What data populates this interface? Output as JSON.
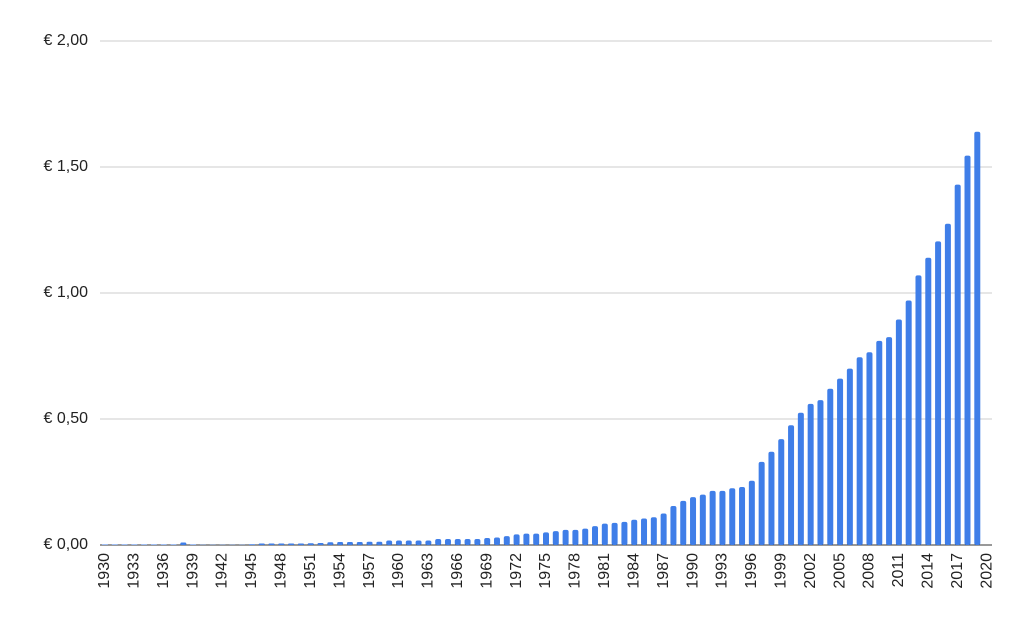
{
  "chart_data": {
    "type": "bar",
    "categories": [
      "1930",
      null,
      null,
      "1933",
      null,
      null,
      "1936",
      null,
      null,
      "1939",
      null,
      null,
      "1942",
      null,
      null,
      "1945",
      null,
      null,
      "1948",
      null,
      null,
      "1951",
      null,
      null,
      "1954",
      null,
      null,
      "1957",
      null,
      null,
      "1960",
      null,
      null,
      "1963",
      null,
      null,
      "1966",
      null,
      null,
      "1969",
      null,
      null,
      "1972",
      null,
      null,
      "1975",
      null,
      null,
      "1978",
      null,
      null,
      "1981",
      null,
      null,
      "1984",
      null,
      null,
      "1987",
      null,
      null,
      "1990",
      null,
      null,
      "1993",
      null,
      null,
      "1996",
      null,
      null,
      "1999",
      null,
      null,
      "2002",
      null,
      null,
      "2005",
      null,
      null,
      "2008",
      null,
      null,
      "2011",
      null,
      null,
      "2014",
      null,
      null,
      "2017",
      null,
      null,
      "2020"
    ],
    "values": [
      0.002,
      0.002,
      0.002,
      0.002,
      0.002,
      0.002,
      0.002,
      0.002,
      0.01,
      0.002,
      0.001,
      0.001,
      0.001,
      0.001,
      0.001,
      0.003,
      0.006,
      0.006,
      0.006,
      0.006,
      0.006,
      0.007,
      0.008,
      0.011,
      0.012,
      0.012,
      0.012,
      0.013,
      0.013,
      0.018,
      0.018,
      0.018,
      0.018,
      0.018,
      0.024,
      0.024,
      0.024,
      0.024,
      0.024,
      0.028,
      0.03,
      0.035,
      0.042,
      0.045,
      0.045,
      0.05,
      0.055,
      0.06,
      0.06,
      0.065,
      0.075,
      0.085,
      0.088,
      0.092,
      0.1,
      0.105,
      0.11,
      0.125,
      0.155,
      0.175,
      0.19,
      0.2,
      0.215,
      0.215,
      0.225,
      0.23,
      0.255,
      0.33,
      0.37,
      0.42,
      0.475,
      0.525,
      0.56,
      0.575,
      0.62,
      0.66,
      0.7,
      0.745,
      0.765,
      0.81,
      0.825,
      0.895,
      0.97,
      1.07,
      1.14,
      1.205,
      1.275,
      1.43,
      1.545,
      1.64,
      null
    ],
    "color": "#3f7ee8",
    "ylim": [
      0,
      2
    ],
    "yticks": [
      {
        "value": 0,
        "label": "€ 0,00"
      },
      {
        "value": 0.5,
        "label": "€ 0,50"
      },
      {
        "value": 1,
        "label": "€ 1,00"
      },
      {
        "value": 1.5,
        "label": "€ 1,50"
      },
      {
        "value": 2,
        "label": "€ 2,00"
      }
    ],
    "grid": true
  }
}
